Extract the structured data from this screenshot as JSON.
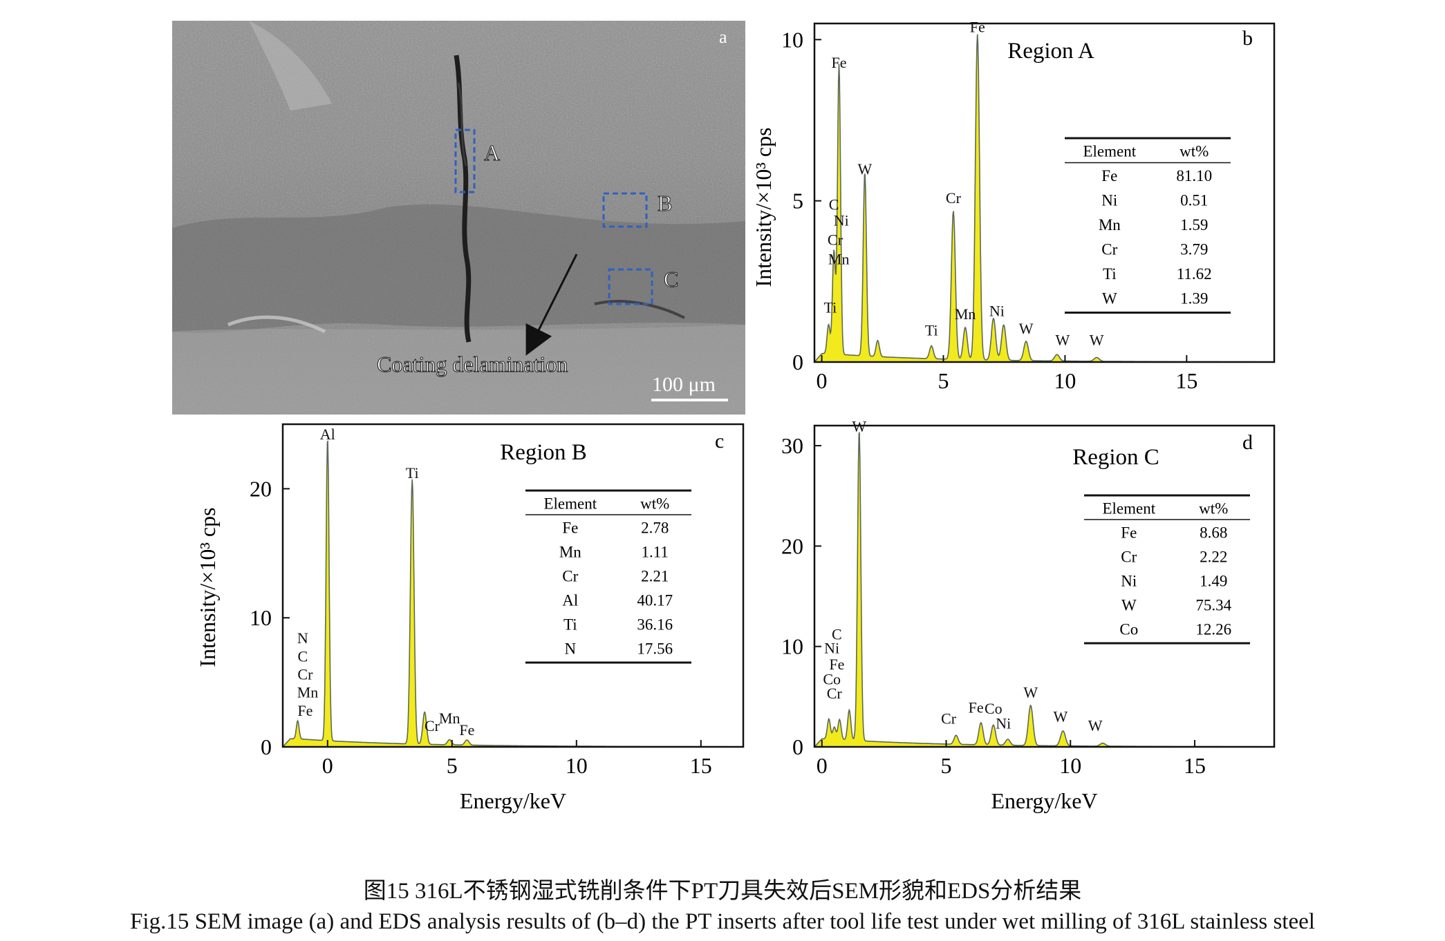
{
  "panel_a": {
    "letter": "a",
    "region_labels": [
      "A",
      "B",
      "C"
    ],
    "annotation": "Coating delamination",
    "scale_bar": "100 μm"
  },
  "chart_data": [
    {
      "panel": "b",
      "type": "line",
      "title": "Region A",
      "xlabel": "",
      "ylabel": "Intensity/×10³ cps",
      "xlim": [
        -0.3,
        18.6
      ],
      "ylim": [
        0,
        10.5
      ],
      "xticks": [
        0,
        5,
        10,
        15
      ],
      "yticks": [
        0,
        5,
        10
      ],
      "peaks": [
        {
          "x": 0.28,
          "y": 0.9
        },
        {
          "x": 0.5,
          "y": 3.2
        },
        {
          "x": 0.71,
          "y": 9.0
        },
        {
          "x": 1.77,
          "y": 5.7
        },
        {
          "x": 2.3,
          "y": 0.5
        },
        {
          "x": 4.51,
          "y": 0.4
        },
        {
          "x": 5.41,
          "y": 4.6
        },
        {
          "x": 5.9,
          "y": 1.0
        },
        {
          "x": 6.4,
          "y": 10.1
        },
        {
          "x": 7.06,
          "y": 1.3
        },
        {
          "x": 7.48,
          "y": 1.1
        },
        {
          "x": 8.4,
          "y": 0.6
        },
        {
          "x": 9.67,
          "y": 0.2
        },
        {
          "x": 11.3,
          "y": 0.12
        }
      ],
      "peak_labels": [
        {
          "text": "Fe",
          "x": 6.4,
          "y": 10.1
        },
        {
          "text": "Fe",
          "x": 0.71,
          "y": 9.0
        },
        {
          "text": "W",
          "x": 1.77,
          "y": 5.7
        },
        {
          "text": "C",
          "x": 0.5,
          "y": 4.6
        },
        {
          "text": "Ni",
          "x": 0.8,
          "y": 4.1
        },
        {
          "text": "Cr",
          "x": 0.55,
          "y": 3.5
        },
        {
          "text": "Mn",
          "x": 0.7,
          "y": 2.9
        },
        {
          "text": "Ti",
          "x": 0.35,
          "y": 1.4
        },
        {
          "text": "Ti",
          "x": 4.51,
          "y": 0.7
        },
        {
          "text": "Cr",
          "x": 5.41,
          "y": 4.8
        },
        {
          "text": "Mn",
          "x": 5.9,
          "y": 1.2
        },
        {
          "text": "Ni",
          "x": 7.2,
          "y": 1.3
        },
        {
          "text": "W",
          "x": 8.4,
          "y": 0.75
        },
        {
          "text": "W",
          "x": 9.9,
          "y": 0.4
        },
        {
          "text": "W",
          "x": 11.3,
          "y": 0.4
        }
      ],
      "table": {
        "headers": [
          "Element",
          "wt%"
        ],
        "rows": [
          [
            "Fe",
            "81.10"
          ],
          [
            "Ni",
            "0.51"
          ],
          [
            "Mn",
            "1.59"
          ],
          [
            "Cr",
            "3.79"
          ],
          [
            "Ti",
            "11.62"
          ],
          [
            "W",
            "1.39"
          ]
        ]
      }
    },
    {
      "panel": "c",
      "type": "line",
      "title": "Region B",
      "xlabel": "Energy/keV",
      "ylabel": "Intensity/×10³ cps",
      "xlim": [
        -1.8,
        16.7
      ],
      "ylim": [
        0,
        25
      ],
      "xticks": [
        0,
        5,
        10,
        15
      ],
      "yticks": [
        0,
        10,
        20
      ],
      "peaks": [
        {
          "x": -1.2,
          "y": 1.4
        },
        {
          "x": 0.0,
          "y": 23.5
        },
        {
          "x": 3.4,
          "y": 20.5
        },
        {
          "x": 3.9,
          "y": 2.5
        },
        {
          "x": 4.9,
          "y": 0.4
        },
        {
          "x": 5.6,
          "y": 0.4
        }
      ],
      "peak_labels": [
        {
          "text": "Al",
          "x": 0.0,
          "y": 23.5
        },
        {
          "text": "Ti",
          "x": 3.4,
          "y": 20.5
        },
        {
          "text": "N",
          "x": -1.0,
          "y": 7.7
        },
        {
          "text": "C",
          "x": -1.0,
          "y": 6.3
        },
        {
          "text": "Cr",
          "x": -0.9,
          "y": 4.9
        },
        {
          "text": "Mn",
          "x": -0.8,
          "y": 3.5
        },
        {
          "text": "Fe",
          "x": -0.9,
          "y": 2.1
        },
        {
          "text": "Cr",
          "x": 4.2,
          "y": 0.9
        },
        {
          "text": "Mn",
          "x": 4.9,
          "y": 1.5
        },
        {
          "text": "Fe",
          "x": 5.6,
          "y": 0.6
        }
      ],
      "table": {
        "headers": [
          "Element",
          "wt%"
        ],
        "rows": [
          [
            "Fe",
            "2.78"
          ],
          [
            "Mn",
            "1.11"
          ],
          [
            "Cr",
            "2.21"
          ],
          [
            "Al",
            "40.17"
          ],
          [
            "Ti",
            "36.16"
          ],
          [
            "N",
            "17.56"
          ]
        ]
      }
    },
    {
      "panel": "d",
      "type": "line",
      "title": "Region C",
      "xlabel": "Energy/keV",
      "ylabel": "",
      "xlim": [
        -0.3,
        18.2
      ],
      "ylim": [
        0,
        32
      ],
      "xticks": [
        0,
        5,
        10,
        15
      ],
      "yticks": [
        0,
        10,
        20,
        30
      ],
      "peaks": [
        {
          "x": 0.28,
          "y": 2.0
        },
        {
          "x": 0.5,
          "y": 1.2
        },
        {
          "x": 0.71,
          "y": 2.0
        },
        {
          "x": 1.1,
          "y": 3.0
        },
        {
          "x": 1.5,
          "y": 31.0
        },
        {
          "x": 5.4,
          "y": 0.9
        },
        {
          "x": 6.4,
          "y": 2.2
        },
        {
          "x": 6.9,
          "y": 2.0
        },
        {
          "x": 7.48,
          "y": 0.6
        },
        {
          "x": 8.4,
          "y": 4.0
        },
        {
          "x": 9.7,
          "y": 1.5
        },
        {
          "x": 11.3,
          "y": 0.3
        }
      ],
      "peak_labels": [
        {
          "text": "W",
          "x": 1.5,
          "y": 31.0
        },
        {
          "text": "C",
          "x": 0.6,
          "y": 10.3
        },
        {
          "text": "Ni",
          "x": 0.4,
          "y": 8.9
        },
        {
          "text": "Fe",
          "x": 0.6,
          "y": 7.3
        },
        {
          "text": "Co",
          "x": 0.4,
          "y": 5.8
        },
        {
          "text": "Cr",
          "x": 0.5,
          "y": 4.4
        },
        {
          "text": "Cr",
          "x": 5.1,
          "y": 1.9
        },
        {
          "text": "Fe",
          "x": 6.2,
          "y": 3.0
        },
        {
          "text": "Co",
          "x": 6.9,
          "y": 2.9
        },
        {
          "text": "Ni",
          "x": 7.3,
          "y": 1.4
        },
        {
          "text": "W",
          "x": 8.4,
          "y": 4.5
        },
        {
          "text": "W",
          "x": 9.6,
          "y": 2.1
        },
        {
          "text": "W",
          "x": 11.0,
          "y": 1.2
        }
      ],
      "table": {
        "headers": [
          "Element",
          "wt%"
        ],
        "rows": [
          [
            "Fe",
            "8.68"
          ],
          [
            "Cr",
            "2.22"
          ],
          [
            "Ni",
            "1.49"
          ],
          [
            "W",
            "75.34"
          ],
          [
            "Co",
            "12.26"
          ]
        ]
      }
    }
  ],
  "captions": {
    "cn": "图15  316L不锈钢湿式铣削条件下PT刀具失效后SEM形貌和EDS分析结果",
    "en": "Fig.15  SEM image (a) and EDS analysis results of (b–d) the PT inserts after tool life test under wet milling of 316L stainless steel"
  },
  "colors": {
    "fill": "#f2ea1c",
    "line": "#5b6a57",
    "box": "#3060c0",
    "sem_base": "#8c8c8c",
    "axis": "#111111"
  }
}
